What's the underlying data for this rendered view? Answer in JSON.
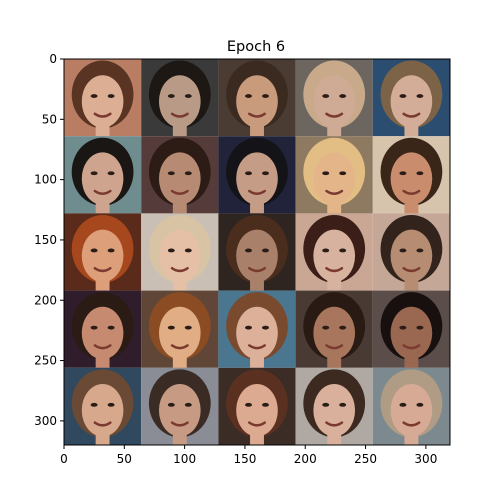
{
  "figure": {
    "title": "Epoch 6",
    "grid_rows": 5,
    "grid_cols": 5,
    "image_extent": [
      0,
      320,
      0,
      320
    ],
    "x_ticks": [
      0,
      50,
      100,
      150,
      200,
      250,
      300
    ],
    "y_ticks": [
      0,
      50,
      100,
      150,
      200,
      250,
      300
    ],
    "tiles": [
      {
        "bg": "#b97d63",
        "hair": "#5a3423",
        "skin": "#dcae93"
      },
      {
        "bg": "#3a3a3a",
        "hair": "#1d1814",
        "skin": "#b99a86"
      },
      {
        "bg": "#4a3b33",
        "hair": "#3b2a20",
        "skin": "#c99b7d"
      },
      {
        "bg": "#6d6660",
        "hair": "#c8aa8a",
        "skin": "#cfaa95"
      },
      {
        "bg": "#2a4d70",
        "hair": "#7c6246",
        "skin": "#d3ad98"
      },
      {
        "bg": "#6f8c8f",
        "hair": "#1a1614",
        "skin": "#cfa48e"
      },
      {
        "bg": "#553c3a",
        "hair": "#2d1c16",
        "skin": "#b78a73"
      },
      {
        "bg": "#20233a",
        "hair": "#141418",
        "skin": "#c59c86"
      },
      {
        "bg": "#8d7a60",
        "hair": "#e2bd84",
        "skin": "#e5b58a"
      },
      {
        "bg": "#d7c4ad",
        "hair": "#3a2519",
        "skin": "#c98d6e"
      },
      {
        "bg": "#5a2a1a",
        "hair": "#a7471e",
        "skin": "#dd9f79"
      },
      {
        "bg": "#c9bfb4",
        "hair": "#d8c4a4",
        "skin": "#e6c0a6"
      },
      {
        "bg": "#2e2420",
        "hair": "#4b2d1d",
        "skin": "#a9806a"
      },
      {
        "bg": "#caa694",
        "hair": "#3b1e17",
        "skin": "#d7b29f"
      },
      {
        "bg": "#c4a796",
        "hair": "#32241c",
        "skin": "#b68c72"
      },
      {
        "bg": "#2f1d2c",
        "hair": "#2b1b15",
        "skin": "#c68a70"
      },
      {
        "bg": "#5f4636",
        "hair": "#8b4c24",
        "skin": "#e0ad85"
      },
      {
        "bg": "#4a7690",
        "hair": "#7a4a2f",
        "skin": "#dcb099"
      },
      {
        "bg": "#4a3a34",
        "hair": "#2a1a14",
        "skin": "#a8765c"
      },
      {
        "bg": "#5a4d4a",
        "hair": "#17100e",
        "skin": "#9a6751"
      },
      {
        "bg": "#30495e",
        "hair": "#6a4a34",
        "skin": "#d8a88d"
      },
      {
        "bg": "#8a8d96",
        "hair": "#3a2c25",
        "skin": "#c79a84"
      },
      {
        "bg": "#3c2c26",
        "hair": "#5a3020",
        "skin": "#dbaa90"
      },
      {
        "bg": "#b0a8a2",
        "hair": "#3c2a20",
        "skin": "#d8b09c"
      },
      {
        "bg": "#7c8a8f",
        "hair": "#b09c85",
        "skin": "#d7aa96"
      }
    ]
  }
}
